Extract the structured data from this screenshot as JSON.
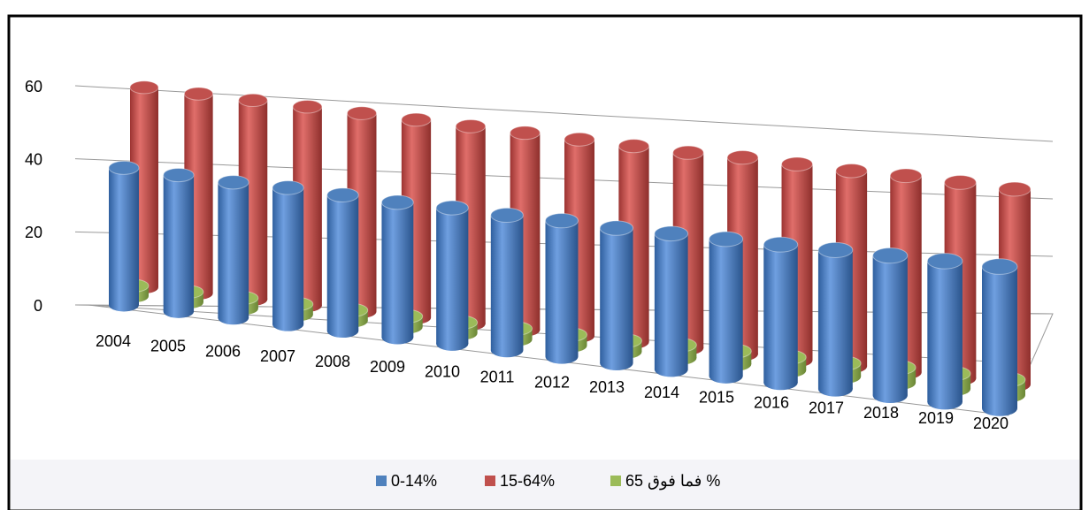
{
  "chart_data": {
    "type": "cylinder3d",
    "categories": [
      "2004",
      "2005",
      "2006",
      "2007",
      "2008",
      "2009",
      "2010",
      "2011",
      "2012",
      "2013",
      "2014",
      "2015",
      "2016",
      "2017",
      "2018",
      "2019",
      "2020"
    ],
    "series": [
      {
        "name": "0-14%",
        "color": "#4f81bd",
        "values": [
          38,
          37.5,
          37,
          37,
          36.5,
          36,
          36,
          35.5,
          35.5,
          35,
          35,
          35,
          35,
          35,
          35,
          35,
          35
        ]
      },
      {
        "name": "15-64%",
        "color": "#c0504d",
        "values": [
          59,
          58.5,
          58,
          57.5,
          57,
          56.5,
          56,
          55.5,
          55,
          54.5,
          54,
          54,
          53.5,
          53,
          53,
          52.5,
          52
        ]
      },
      {
        "name": "65 فما فوق %",
        "color": "#9bbb59",
        "values": [
          3,
          3,
          3,
          3,
          3,
          3,
          3,
          3,
          3,
          3,
          3.5,
          3.5,
          3.5,
          3.5,
          4,
          4,
          4
        ]
      }
    ],
    "ylim": [
      0,
      60
    ],
    "yticks": [
      0,
      20,
      40,
      60
    ],
    "grid": true,
    "legend": "bottom"
  }
}
